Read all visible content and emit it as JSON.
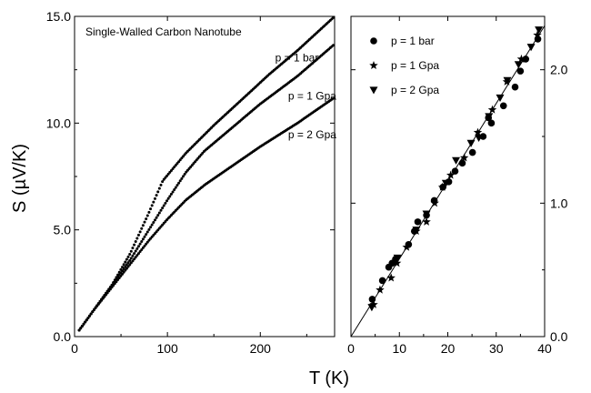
{
  "chart_data": [
    {
      "type": "scatter",
      "title": "Single-Walled Carbon Nanotube",
      "xlabel": "T (K)",
      "ylabel": "S (µV/K)",
      "xlim": [
        0,
        280
      ],
      "ylim": [
        0,
        15
      ],
      "grid": false,
      "xticks": [
        {
          "v": 0,
          "label": "0"
        },
        {
          "v": 100,
          "label": "100"
        },
        {
          "v": 200,
          "label": "200"
        }
      ],
      "yticks": [
        {
          "v": 0,
          "label": "0.0"
        },
        {
          "v": 5,
          "label": "5.0"
        },
        {
          "v": 10,
          "label": "10.0"
        },
        {
          "v": 15,
          "label": "15.0"
        }
      ],
      "series": [
        {
          "name": "p = 1 bar",
          "label_at": [
            216,
            12.9
          ],
          "knots": [
            [
              5,
              0.3
            ],
            [
              20,
              1.2
            ],
            [
              40,
              2.4
            ],
            [
              60,
              3.9
            ],
            [
              80,
              5.8
            ],
            [
              95,
              7.3
            ],
            [
              120,
              8.6
            ],
            [
              150,
              9.9
            ],
            [
              180,
              11.1
            ],
            [
              210,
              12.3
            ],
            [
              240,
              13.4
            ],
            [
              280,
              15.0
            ]
          ]
        },
        {
          "name": "p = 1 Gpa",
          "label_at": [
            230,
            11.1
          ],
          "knots": [
            [
              5,
              0.3
            ],
            [
              20,
              1.2
            ],
            [
              40,
              2.4
            ],
            [
              60,
              3.6
            ],
            [
              80,
              5.0
            ],
            [
              100,
              6.4
            ],
            [
              120,
              7.7
            ],
            [
              140,
              8.7
            ],
            [
              170,
              9.8
            ],
            [
              200,
              10.9
            ],
            [
              240,
              12.2
            ],
            [
              280,
              13.7
            ]
          ]
        },
        {
          "name": "p = 2 Gpa",
          "label_at": [
            230,
            9.3
          ],
          "knots": [
            [
              5,
              0.3
            ],
            [
              20,
              1.2
            ],
            [
              40,
              2.3
            ],
            [
              60,
              3.4
            ],
            [
              80,
              4.5
            ],
            [
              100,
              5.5
            ],
            [
              120,
              6.4
            ],
            [
              140,
              7.1
            ],
            [
              170,
              8.0
            ],
            [
              200,
              8.9
            ],
            [
              240,
              10.0
            ],
            [
              280,
              11.2
            ]
          ]
        }
      ]
    },
    {
      "type": "scatter",
      "xlim": [
        0,
        40
      ],
      "ylim": [
        0,
        2.4
      ],
      "grid": false,
      "legend_position": "top-left",
      "xticks": [
        {
          "v": 0,
          "label": "0"
        },
        {
          "v": 10,
          "label": "10"
        },
        {
          "v": 20,
          "label": "20"
        },
        {
          "v": 30,
          "label": "30"
        },
        {
          "v": 40,
          "label": "40"
        }
      ],
      "yticks": [
        {
          "v": 0,
          "label": "0.0"
        },
        {
          "v": 1,
          "label": "1.0"
        },
        {
          "v": 2,
          "label": "2.0"
        }
      ],
      "fit_line": {
        "x": [
          0,
          40
        ],
        "y": [
          0,
          2.33
        ]
      },
      "series": [
        {
          "name": "p = 1 bar",
          "marker": "circle",
          "x": [
            4.4,
            6.5,
            7.8,
            8.5,
            9.2,
            11.9,
            13.1,
            13.8,
            15.6,
            17.2,
            19.0,
            20.2,
            21.5,
            23.0,
            25.1,
            27.3,
            28.4,
            29.0,
            31.5,
            33.9,
            35.0,
            36.1,
            38.6
          ],
          "y": [
            0.28,
            0.42,
            0.52,
            0.55,
            0.58,
            0.69,
            0.79,
            0.86,
            0.91,
            1.02,
            1.12,
            1.16,
            1.24,
            1.3,
            1.38,
            1.5,
            1.64,
            1.6,
            1.73,
            1.87,
            1.99,
            2.08,
            2.23
          ]
        },
        {
          "name": "p = 1 Gpa",
          "marker": "star",
          "x": [
            4.7,
            6.0,
            8.3,
            9.5,
            11.5,
            13.5,
            15.6,
            17.3,
            18.9,
            20.6,
            23.4,
            26.2,
            29.2,
            32.2,
            35.2,
            38.5
          ],
          "y": [
            0.24,
            0.35,
            0.44,
            0.55,
            0.67,
            0.79,
            0.86,
            1.0,
            1.12,
            1.21,
            1.34,
            1.53,
            1.7,
            1.91,
            2.08,
            2.26
          ]
        },
        {
          "name": "p = 2 Gpa",
          "marker": "triangle",
          "x": [
            4.3,
            9.6,
            13.5,
            15.6,
            19.6,
            21.7,
            24.8,
            26.4,
            28.5,
            30.8,
            32.3,
            34.6,
            37.2,
            38.8
          ],
          "y": [
            0.22,
            0.59,
            0.8,
            0.92,
            1.15,
            1.32,
            1.45,
            1.49,
            1.65,
            1.79,
            1.92,
            2.04,
            2.17,
            2.3
          ]
        }
      ]
    }
  ]
}
